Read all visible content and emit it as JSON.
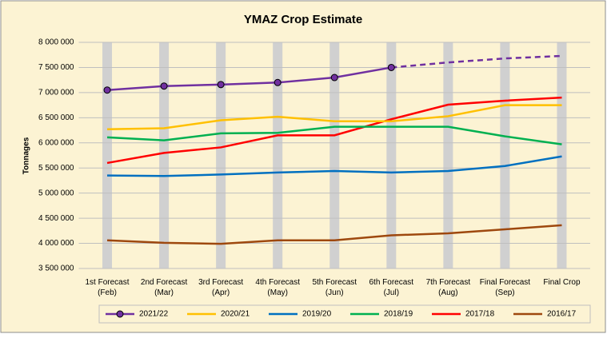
{
  "chart_data": {
    "type": "line",
    "title": "YMAZ Crop Estimate",
    "y_label": "Tonnages",
    "categories": [
      "1st Forecast\n(Feb)",
      "2nd Forecast\n(Mar)",
      "3rd Forecast\n(Apr)",
      "4th Forecast\n(May)",
      "5th Forecast\n(Jun)",
      "6th Forecast\n(Jul)",
      "7th Forecast\n(Aug)",
      "Final Forecast\n(Sep)",
      "Final Crop"
    ],
    "ylim": [
      3500000,
      8000000
    ],
    "yticks": [
      {
        "value": 3500000,
        "label": "3 500 000"
      },
      {
        "value": 4000000,
        "label": "4 000 000"
      },
      {
        "value": 4500000,
        "label": "4 500 000"
      },
      {
        "value": 5000000,
        "label": "5 000 000"
      },
      {
        "value": 5500000,
        "label": "5 500 000"
      },
      {
        "value": 6000000,
        "label": "6 000 000"
      },
      {
        "value": 6500000,
        "label": "6 500 000"
      },
      {
        "value": 7000000,
        "label": "7 000 000"
      },
      {
        "value": 7500000,
        "label": "7 500 000"
      },
      {
        "value": 8000000,
        "label": "8 000 000"
      }
    ],
    "grid": true,
    "series": [
      {
        "name": "2021/22",
        "color": "#7030a0",
        "markers": true,
        "dash_from_index": 5,
        "values": [
          7050000,
          7130000,
          7160000,
          7200000,
          7300000,
          7500000,
          7600000,
          7680000,
          7730000
        ]
      },
      {
        "name": "2020/21",
        "color": "#ffc000",
        "values": [
          6270000,
          6290000,
          6450000,
          6520000,
          6430000,
          6430000,
          6530000,
          6750000,
          6750000
        ]
      },
      {
        "name": "2019/20",
        "color": "#0070c0",
        "values": [
          5350000,
          5340000,
          5370000,
          5410000,
          5440000,
          5410000,
          5440000,
          5540000,
          5730000
        ]
      },
      {
        "name": "2018/19",
        "color": "#00b050",
        "values": [
          6110000,
          6050000,
          6190000,
          6200000,
          6320000,
          6320000,
          6320000,
          6130000,
          5970000
        ]
      },
      {
        "name": "2017/18",
        "color": "#ff0000",
        "values": [
          5600000,
          5800000,
          5910000,
          6150000,
          6150000,
          6470000,
          6760000,
          6840000,
          6900000
        ]
      },
      {
        "name": "2016/17",
        "color": "#9e480e",
        "values": [
          4060000,
          4010000,
          3990000,
          4060000,
          4060000,
          4160000,
          4200000,
          4280000,
          4360000
        ]
      }
    ]
  }
}
